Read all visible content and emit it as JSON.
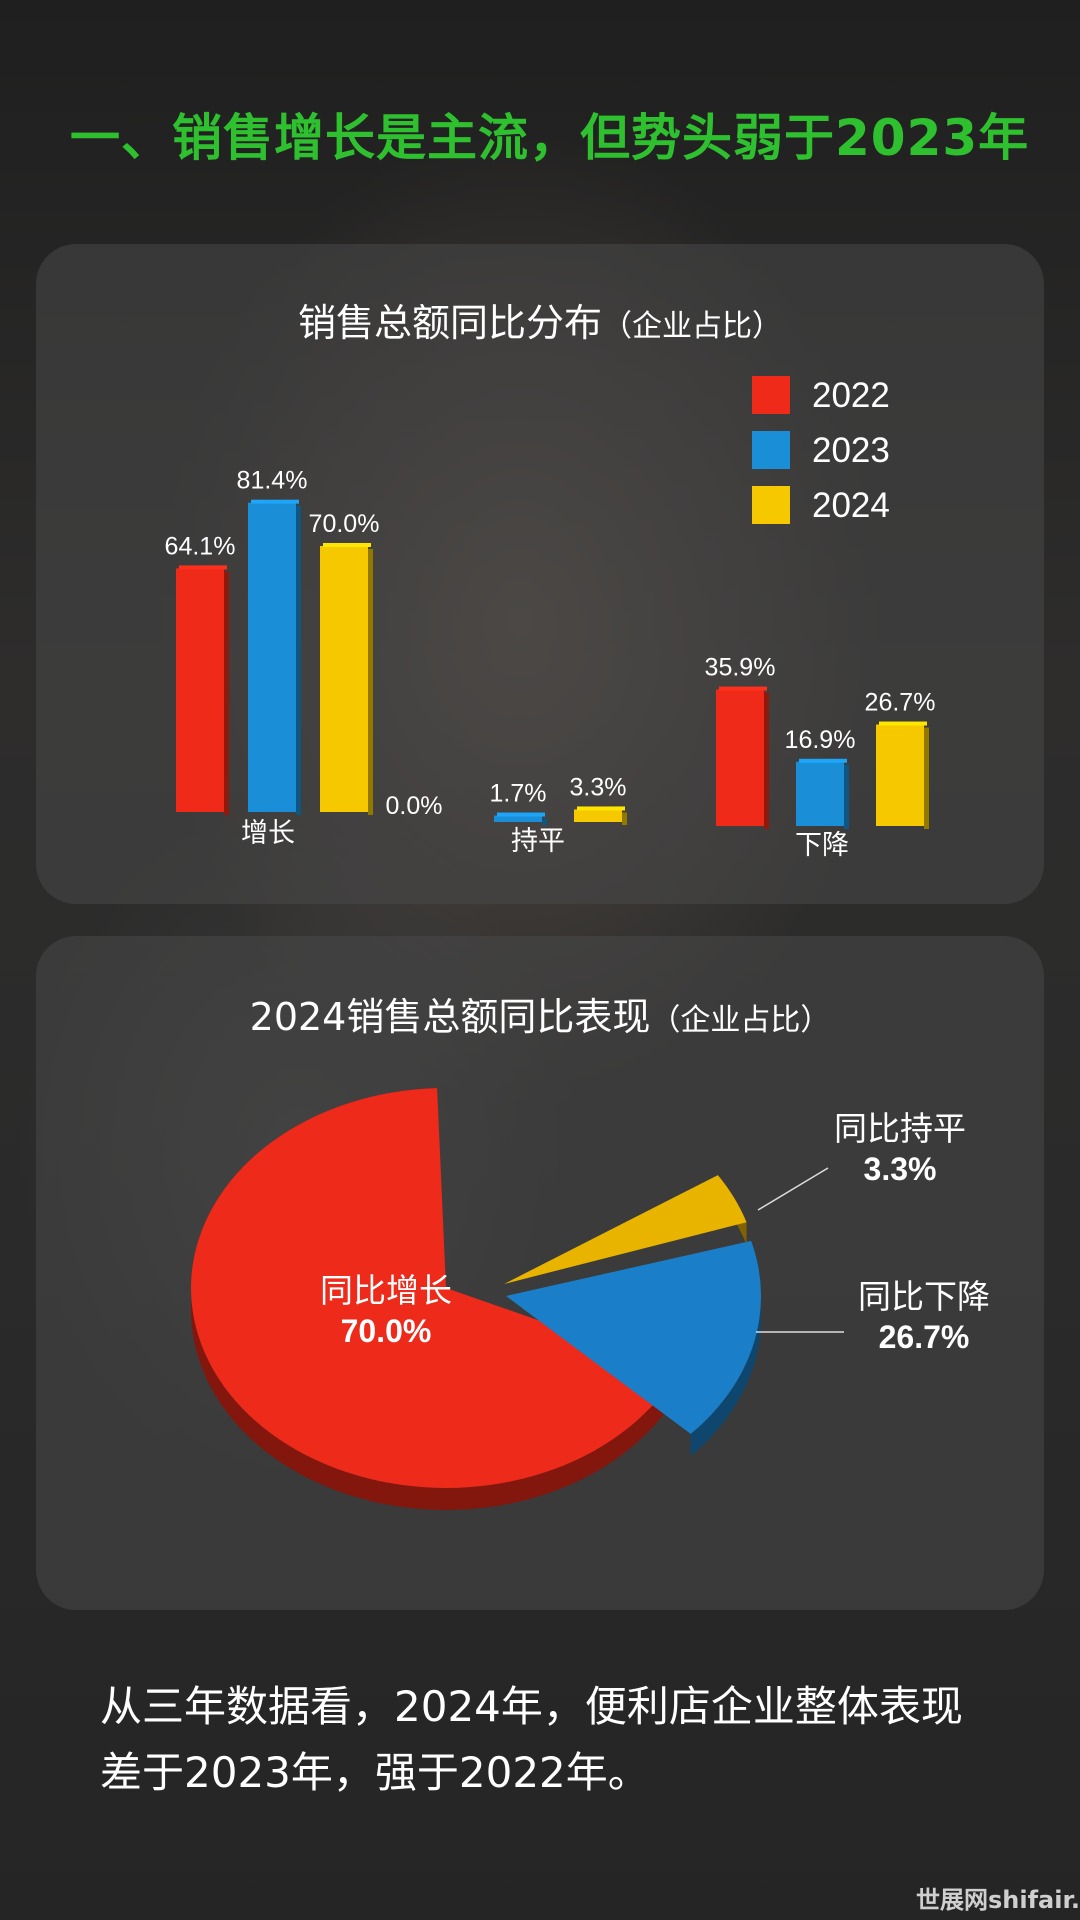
{
  "headline": "一、销售增长是主流，但势头弱于2023年",
  "chart_data": [
    {
      "type": "bar",
      "title": "销售总额同比分布",
      "title_note": "（企业占比）",
      "categories": [
        "增长",
        "持平",
        "下降"
      ],
      "legend_position": "top-right",
      "series": [
        {
          "name": "2022",
          "color": "#f02a18",
          "values": [
            64.1,
            0.0,
            35.9
          ],
          "labels": [
            "64.1%",
            "0.0%",
            "35.9%"
          ]
        },
        {
          "name": "2023",
          "color": "#1a8fd8",
          "values": [
            81.4,
            1.7,
            16.9
          ],
          "labels": [
            "81.4%",
            "1.7%",
            "16.9%"
          ]
        },
        {
          "name": "2024",
          "color": "#f5c800",
          "values": [
            70.0,
            3.3,
            26.7
          ],
          "labels": [
            "70.0%",
            "3.3%",
            "26.7%"
          ]
        }
      ],
      "ylim": [
        0,
        100
      ],
      "grid": false
    },
    {
      "type": "pie",
      "title": "2024销售总额同比表现",
      "title_note": "（企业占比）",
      "slices": [
        {
          "label": "同比增长",
          "value": 70.0,
          "value_label": "70.0%",
          "color": "#ee2a1a"
        },
        {
          "label": "同比下降",
          "value": 26.7,
          "value_label": "26.7%",
          "color": "#1a7fc8"
        },
        {
          "label": "同比持平",
          "value": 3.3,
          "value_label": "3.3%",
          "color": "#e8b400"
        }
      ]
    }
  ],
  "footer": "从三年数据看，2024年，便利店企业整体表现差于2023年，强于2022年。",
  "watermark": "世展网shifair."
}
